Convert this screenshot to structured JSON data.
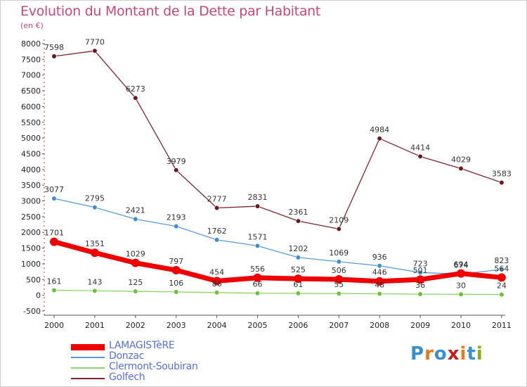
{
  "title": "Evolution du Montant de la Dette par Habitant",
  "unit_label": "(en €)",
  "logo": {
    "text": "Proxiti",
    "colors": [
      "#3a8fd0",
      "#e07a1a",
      "#3a8fd0",
      "#c02020",
      "#e07a1a",
      "#3a8fd0",
      "#80b020"
    ]
  },
  "chart_data": {
    "type": "line",
    "x": [
      "2000",
      "2001",
      "2002",
      "2003",
      "2004",
      "2005",
      "2006",
      "2007",
      "2008",
      "2009",
      "2010",
      "2011"
    ],
    "ylim": [
      -500,
      8000
    ],
    "yticks": [
      -500,
      0,
      500,
      1000,
      1500,
      2000,
      2500,
      3000,
      3500,
      4000,
      4500,
      5000,
      5500,
      6000,
      6500,
      7000,
      7500,
      8000
    ],
    "grid": false,
    "legend": "bottom-left",
    "series": [
      {
        "name": "Golfech",
        "color": "#7a2530",
        "markerColor": "#6a1a22",
        "width": 1.3,
        "values": [
          7598,
          7770,
          6273,
          3979,
          2777,
          2831,
          2361,
          2109,
          4984,
          4414,
          4029,
          3583
        ]
      },
      {
        "name": "Donzac",
        "color": "#5b9bd5",
        "markerColor": "#3f8ed0",
        "width": 1.3,
        "values": [
          3077,
          2795,
          2421,
          2193,
          1762,
          1571,
          1202,
          1069,
          936,
          723,
          674,
          823
        ]
      },
      {
        "name": "Clermont-Soubiran",
        "color": "#8ed36a",
        "markerColor": "#6cc040",
        "width": 1.3,
        "values": [
          161,
          143,
          125,
          106,
          86,
          66,
          61,
          55,
          48,
          36,
          30,
          24
        ]
      },
      {
        "name": "LAMAGISTèRE",
        "color": "#ee0000",
        "markerColor": "#ee0000",
        "width": 7,
        "values": [
          1701,
          1351,
          1029,
          797,
          454,
          556,
          525,
          506,
          446,
          501,
          694,
          564
        ]
      }
    ],
    "legend_order": [
      "LAMAGISTèRE",
      "Donzac",
      "Clermont-Soubiran",
      "Golfech"
    ]
  }
}
